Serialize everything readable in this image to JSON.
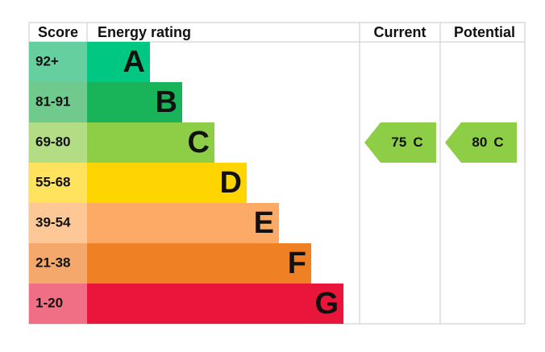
{
  "headers": {
    "score": "Score",
    "rating": "Energy rating",
    "current": "Current",
    "potential": "Potential"
  },
  "bands": [
    {
      "score": "92+",
      "letter": "A",
      "color": "#00c781",
      "light": "#66cfa0"
    },
    {
      "score": "81-91",
      "letter": "B",
      "color": "#19b459",
      "light": "#70c98d"
    },
    {
      "score": "69-80",
      "letter": "C",
      "color": "#8dce46",
      "light": "#b3dd85"
    },
    {
      "score": "55-68",
      "letter": "D",
      "color": "#ffd500",
      "light": "#ffe35e"
    },
    {
      "score": "39-54",
      "letter": "E",
      "color": "#fcaa65",
      "light": "#fdc796"
    },
    {
      "score": "21-38",
      "letter": "F",
      "color": "#ef8023",
      "light": "#f4a86b"
    },
    {
      "score": "1-20",
      "letter": "G",
      "color": "#e9153b",
      "light": "#f06f84"
    }
  ],
  "current": {
    "score": "75",
    "letter": "C"
  },
  "potential": {
    "score": "80",
    "letter": "C"
  }
}
